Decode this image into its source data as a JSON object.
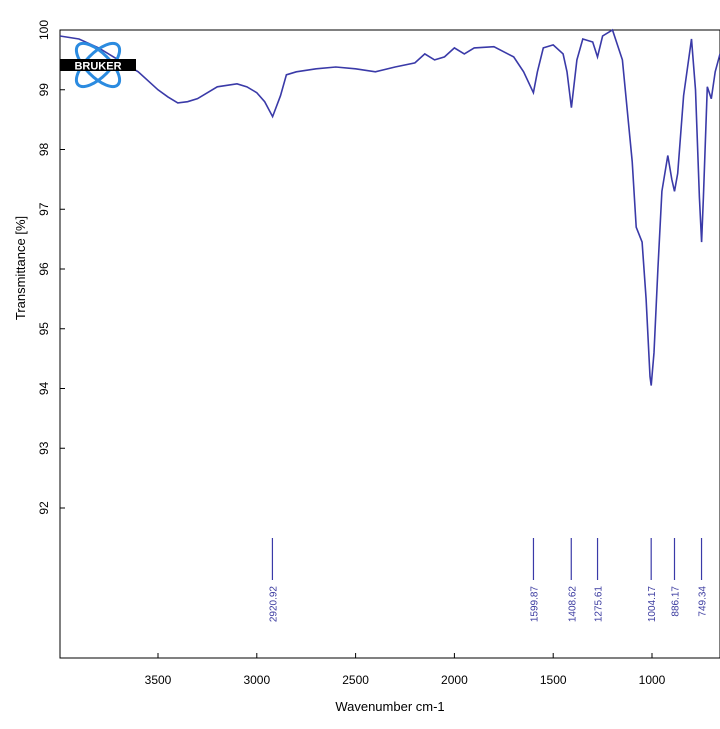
{
  "chart_data": {
    "type": "line",
    "title": "",
    "xlabel": "Wavenumber cm-1",
    "ylabel": "Transmittance [%]",
    "xlim": [
      4000,
      650
    ],
    "ylim": [
      91.5,
      100
    ],
    "x_reversed": true,
    "x_ticks": [
      3500,
      3000,
      2500,
      2000,
      1500,
      1000
    ],
    "y_ticks": [
      92,
      93,
      94,
      95,
      96,
      97,
      98,
      99,
      100
    ],
    "grid": false,
    "line_color": "#3a3aa8",
    "series": [
      {
        "x": [
          4000,
          3900,
          3800,
          3700,
          3600,
          3500,
          3450,
          3400,
          3350,
          3300,
          3200,
          3100,
          3050,
          3000,
          2960,
          2920,
          2880,
          2850,
          2800,
          2700,
          2600,
          2500,
          2400,
          2300,
          2200,
          2150,
          2100,
          2050,
          2000,
          1950,
          1900,
          1800,
          1700,
          1650,
          1600,
          1580,
          1550,
          1500,
          1450,
          1430,
          1408,
          1380,
          1350,
          1300,
          1276,
          1250,
          1200,
          1150,
          1100,
          1080,
          1050,
          1030,
          1010,
          1004,
          990,
          970,
          950,
          920,
          900,
          886,
          870,
          840,
          800,
          780,
          760,
          749,
          740,
          720,
          700,
          680,
          650
        ],
        "y": [
          99.9,
          99.85,
          99.7,
          99.5,
          99.3,
          99.0,
          98.88,
          98.78,
          98.8,
          98.85,
          99.05,
          99.1,
          99.05,
          98.95,
          98.8,
          98.55,
          98.9,
          99.25,
          99.3,
          99.35,
          99.38,
          99.35,
          99.3,
          99.38,
          99.45,
          99.6,
          99.5,
          99.55,
          99.7,
          99.6,
          99.7,
          99.72,
          99.55,
          99.3,
          98.95,
          99.3,
          99.7,
          99.75,
          99.6,
          99.3,
          98.7,
          99.5,
          99.85,
          99.8,
          99.55,
          99.9,
          100.0,
          99.5,
          97.8,
          96.7,
          96.45,
          95.5,
          94.2,
          94.05,
          94.6,
          96.0,
          97.3,
          97.9,
          97.5,
          97.3,
          97.6,
          98.9,
          99.85,
          99.0,
          97.2,
          96.45,
          97.2,
          99.05,
          98.85,
          99.3,
          99.6
        ]
      }
    ],
    "peak_labels": [
      "2920.92",
      "1599.87",
      "1408.62",
      "1275.61",
      "1004.17",
      "886.17",
      "749.34"
    ],
    "peak_positions": [
      2920.92,
      1599.87,
      1408.62,
      1275.61,
      1004.17,
      886.17,
      749.34
    ],
    "logo_text": "BRUKER"
  }
}
